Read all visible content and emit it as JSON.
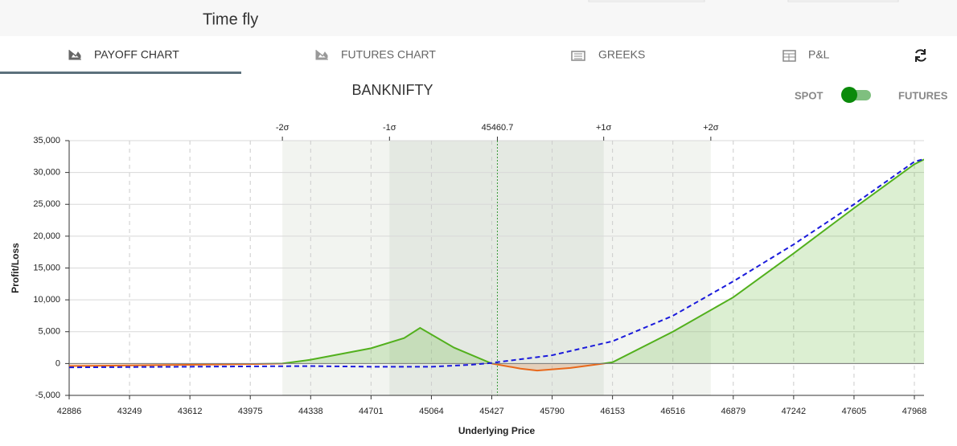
{
  "header": {
    "title": "Time fly"
  },
  "tabs": [
    "PAYOFF CHART",
    "FUTURES CHART",
    "GREEKS",
    "P&L"
  ],
  "toggle": {
    "left": "SPOT",
    "right": "FUTURES"
  },
  "chart_data": {
    "type": "line",
    "title": "BANKNIFTY",
    "x_label": "Underlying Price",
    "y_label": "Profit/Loss",
    "xlim": [
      42886,
      48026
    ],
    "ylim": [
      -5000,
      35000
    ],
    "xticks": [
      42886,
      43249,
      43612,
      43975,
      44338,
      44701,
      45064,
      45427,
      45790,
      46153,
      46516,
      46879,
      47242,
      47605,
      47968
    ],
    "yticks": [
      {
        "value": -5000,
        "label": "-5,000"
      },
      0,
      {
        "value": 5000,
        "label": "5,000"
      },
      {
        "value": 10000,
        "label": "10,000"
      },
      {
        "value": 15000,
        "label": "15,000"
      },
      {
        "value": 20000,
        "label": "20,000"
      },
      {
        "value": 25000,
        "label": "25,000"
      },
      {
        "value": 30000,
        "label": "30,000"
      },
      {
        "value": 35000,
        "label": "35,000"
      }
    ],
    "top_ticks": [
      {
        "value": 44168,
        "label": "-2σ"
      },
      {
        "value": 44812,
        "label": "-1σ"
      },
      45460.7,
      {
        "value": 46100,
        "label": "+1σ"
      },
      {
        "value": 46744,
        "label": "+2σ"
      }
    ],
    "grid": true,
    "payoff": {
      "x": [
        42886,
        43975,
        44168,
        44338,
        44701,
        44900,
        44996,
        45200,
        45427,
        45600,
        45700,
        45900,
        46100,
        46153,
        46516,
        46879,
        47242,
        47605,
        47968,
        48026
      ],
      "values": [
        -400,
        -100,
        0,
        600,
        2400,
        4000,
        5600,
        2500,
        0,
        -800,
        -1100,
        -700,
        0,
        200,
        5000,
        10400,
        17300,
        24400,
        31300,
        32050
      ],
      "positive_color": "#52b01d",
      "negative_color": "#e8691c"
    },
    "series": [
      {
        "x": [
          42886,
          43612,
          44338,
          44701,
          45064,
          45300,
          45427,
          45790,
          46153,
          46516,
          46879,
          47242,
          47605,
          47968,
          48026
        ],
        "values": [
          -600,
          -500,
          -400,
          -500,
          -500,
          -200,
          100,
          1300,
          3500,
          7500,
          12900,
          18700,
          25000,
          31700,
          32100
        ],
        "color": "#1a1adb"
      }
    ]
  }
}
